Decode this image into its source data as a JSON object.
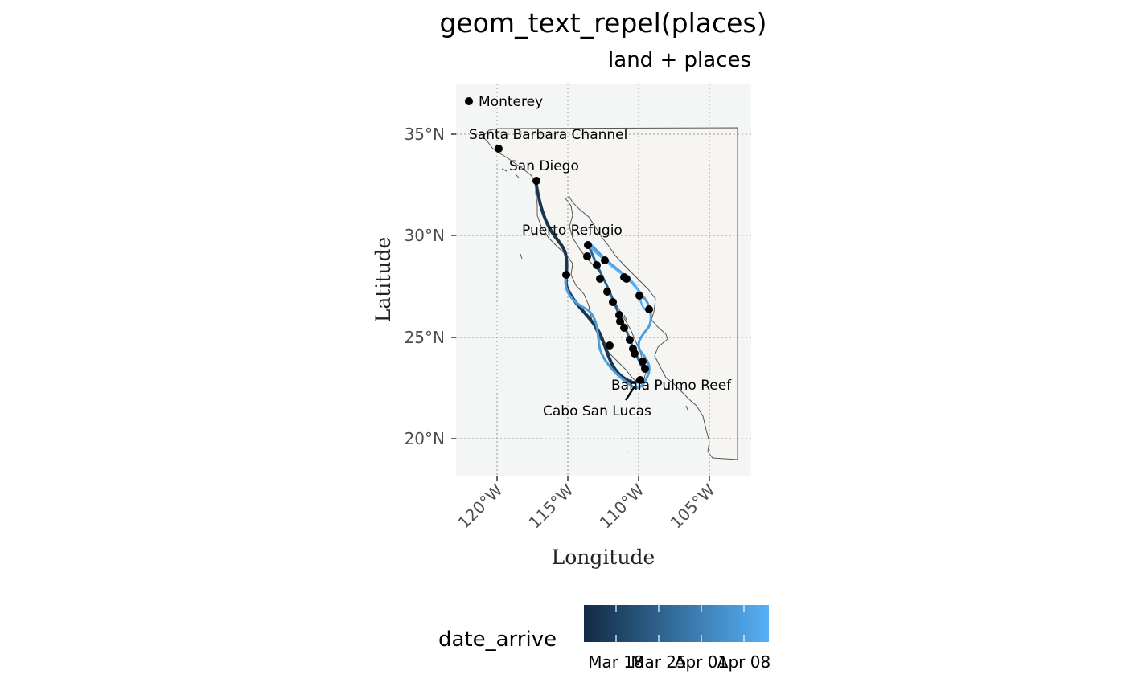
{
  "title": "geom_text_repel(places)",
  "subtitle": "land + places",
  "axes": {
    "xlabel": "Longitude",
    "ylabel": "Latitude",
    "xticks": [
      "120°W",
      "115°W",
      "110°W",
      "105°W"
    ],
    "yticks": [
      "35°N",
      "30°N",
      "25°N",
      "20°N"
    ]
  },
  "places": [
    {
      "label": "Monterey"
    },
    {
      "label": "Santa Barbara Channel"
    },
    {
      "label": "San Diego"
    },
    {
      "label": "Puerto Refugio"
    },
    {
      "label": "Bahía Pulmo Reef"
    },
    {
      "label": "Cabo San Lucas"
    }
  ],
  "legend": {
    "title": "date_arrive",
    "labels": [
      "Mar 18",
      "Mar 25",
      "Apr 01",
      "Apr 08"
    ],
    "color_low": "#132B43",
    "color_high": "#56B1F7"
  },
  "colors": {
    "panel": "#F4F5F5",
    "land": "#F6F5F1",
    "coast": "#555555",
    "grid": "#999999",
    "point": "#000000"
  }
}
